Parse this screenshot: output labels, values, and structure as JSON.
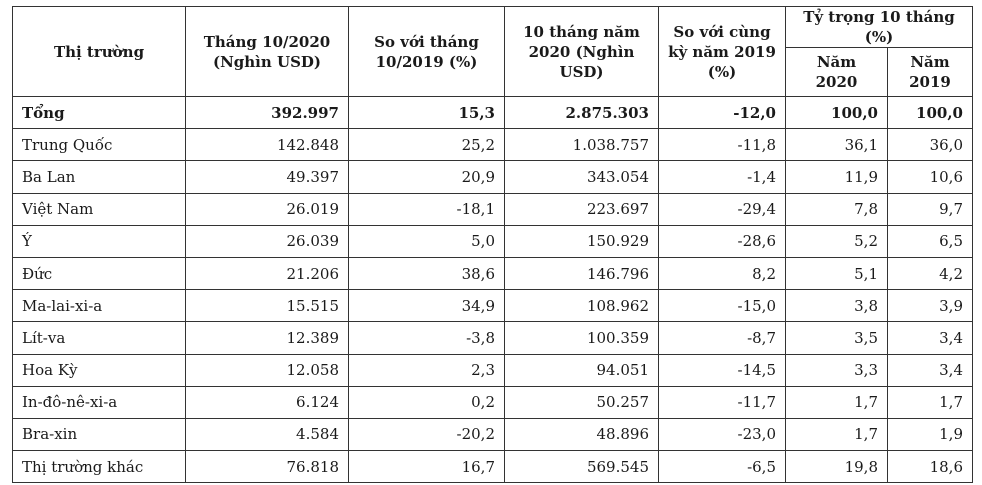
{
  "table": {
    "headers": {
      "market": "Thị trường",
      "oct2020": "Tháng 10/2020 (Nghìn USD)",
      "vs_oct2019": "So với tháng 10/2019 (%)",
      "ten_months_2020": "10 tháng năm 2020 (Nghìn USD)",
      "vs_same_period_2019": "So với cùng kỳ năm 2019 (%)",
      "share_group": "Tỷ trọng 10 tháng (%)",
      "share_2020": "Năm 2020",
      "share_2019": "Năm 2019"
    },
    "rows": [
      {
        "market": "Tổng",
        "oct2020": "392.997",
        "vs_oct2019": "15,3",
        "ten_months_2020": "2.875.303",
        "vs_same_period_2019": "-12,0",
        "share_2020": "100,0",
        "share_2019": "100,0"
      },
      {
        "market": "Trung Quốc",
        "oct2020": "142.848",
        "vs_oct2019": "25,2",
        "ten_months_2020": "1.038.757",
        "vs_same_period_2019": "-11,8",
        "share_2020": "36,1",
        "share_2019": "36,0"
      },
      {
        "market": "Ba Lan",
        "oct2020": "49.397",
        "vs_oct2019": "20,9",
        "ten_months_2020": "343.054",
        "vs_same_period_2019": "-1,4",
        "share_2020": "11,9",
        "share_2019": "10,6"
      },
      {
        "market": "Việt Nam",
        "oct2020": "26.019",
        "vs_oct2019": "-18,1",
        "ten_months_2020": "223.697",
        "vs_same_period_2019": "-29,4",
        "share_2020": "7,8",
        "share_2019": "9,7"
      },
      {
        "market": "Ý",
        "oct2020": "26.039",
        "vs_oct2019": "5,0",
        "ten_months_2020": "150.929",
        "vs_same_period_2019": "-28,6",
        "share_2020": "5,2",
        "share_2019": "6,5"
      },
      {
        "market": "Đức",
        "oct2020": "21.206",
        "vs_oct2019": "38,6",
        "ten_months_2020": "146.796",
        "vs_same_period_2019": "8,2",
        "share_2020": "5,1",
        "share_2019": "4,2"
      },
      {
        "market": "Ma-lai-xi-a",
        "oct2020": "15.515",
        "vs_oct2019": "34,9",
        "ten_months_2020": "108.962",
        "vs_same_period_2019": "-15,0",
        "share_2020": "3,8",
        "share_2019": "3,9"
      },
      {
        "market": "Lít-va",
        "oct2020": "12.389",
        "vs_oct2019": "-3,8",
        "ten_months_2020": "100.359",
        "vs_same_period_2019": "-8,7",
        "share_2020": "3,5",
        "share_2019": "3,4"
      },
      {
        "market": "Hoa Kỳ",
        "oct2020": "12.058",
        "vs_oct2019": "2,3",
        "ten_months_2020": "94.051",
        "vs_same_period_2019": "-14,5",
        "share_2020": "3,3",
        "share_2019": "3,4"
      },
      {
        "market": "In-đô-nê-xi-a",
        "oct2020": "6.124",
        "vs_oct2019": "0,2",
        "ten_months_2020": "50.257",
        "vs_same_period_2019": "-11,7",
        "share_2020": "1,7",
        "share_2019": "1,7"
      },
      {
        "market": "Bra-xin",
        "oct2020": "4.584",
        "vs_oct2019": "-20,2",
        "ten_months_2020": "48.896",
        "vs_same_period_2019": "-23,0",
        "share_2020": "1,7",
        "share_2019": "1,9"
      },
      {
        "market": "Thị trường khác",
        "oct2020": "76.818",
        "vs_oct2019": "16,7",
        "ten_months_2020": "569.545",
        "vs_same_period_2019": "-6,5",
        "share_2020": "19,8",
        "share_2019": "18,6"
      }
    ]
  }
}
